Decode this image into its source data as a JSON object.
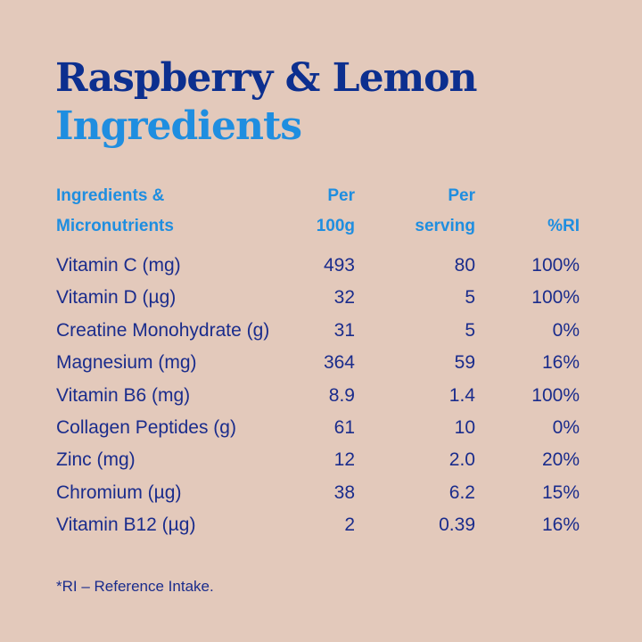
{
  "title": {
    "line1": "Raspberry & Lemon",
    "line2": "Ingredients"
  },
  "table": {
    "header": [
      [
        "Ingredients &",
        "Micronutrients"
      ],
      [
        "Per",
        "100g"
      ],
      [
        "Per",
        "serving"
      ],
      [
        "%RI"
      ]
    ],
    "rows": [
      [
        "Vitamin C (mg)",
        "493",
        "80",
        "100%"
      ],
      [
        "Vitamin D (µg)",
        "32",
        "5",
        "100%"
      ],
      [
        "Creatine Monohydrate (g)",
        "31",
        "5",
        "0%"
      ],
      [
        "Magnesium (mg)",
        "364",
        "59",
        "16%"
      ],
      [
        "Vitamin B6 (mg)",
        "8.9",
        "1.4",
        "100%"
      ],
      [
        "Collagen Peptides (g)",
        "61",
        "10",
        "0%"
      ],
      [
        "Zinc (mg)",
        "12",
        "2.0",
        "20%"
      ],
      [
        "Chromium (µg)",
        "38",
        "6.2",
        "15%"
      ],
      [
        "Vitamin B12 (µg)",
        "2",
        "0.39",
        "16%"
      ]
    ]
  },
  "footnote": "*RI – Reference Intake."
}
